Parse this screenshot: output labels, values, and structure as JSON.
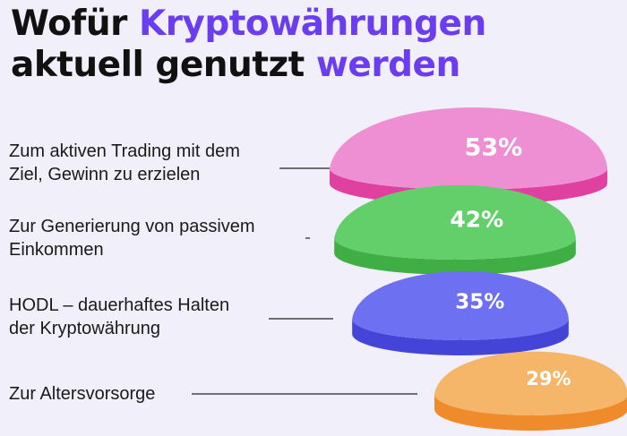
{
  "title": {
    "part1": "Wofür ",
    "part2": "Kryptowährungen",
    "part3": "aktuell genutzt ",
    "part4": "werden"
  },
  "colors": {
    "accent": "#6a3df0",
    "background": "#f1eff9"
  },
  "chart_data": {
    "type": "bar",
    "title": "Wofür Kryptowährungen aktuell genutzt werden",
    "unit": "%",
    "categories": [
      "Zum aktiven Trading mit dem\nZiel, Gewinn zu erzielen",
      "Zur Generierung von passivem\nEinkommen",
      "HODL – dauerhaftes Halten\nder Kryptowährung",
      "Zur Altersvorsorge"
    ],
    "values": [
      53,
      42,
      35,
      29
    ],
    "value_labels": [
      "53%",
      "42%",
      "35%",
      "29%"
    ],
    "colors": [
      {
        "top": "#ee8fd4",
        "side": "#e0409f"
      },
      {
        "top": "#63cf6a",
        "side": "#3fae45"
      },
      {
        "top": "#6d70f1",
        "side": "#4544d9"
      },
      {
        "top": "#f6b66a",
        "side": "#ef8b2a"
      }
    ],
    "legend": "none",
    "grid": false
  }
}
